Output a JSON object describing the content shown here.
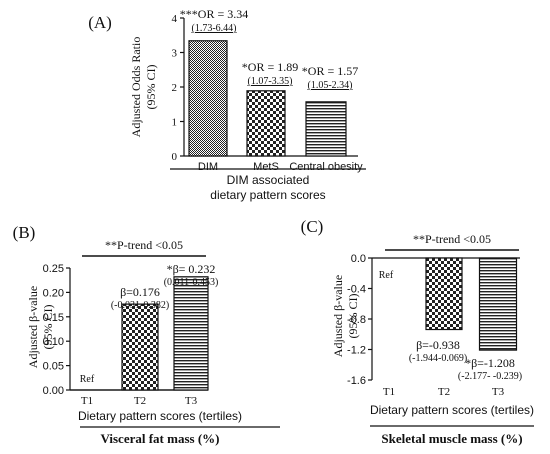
{
  "chart_data": [
    {
      "panel": "(A)",
      "type": "bar",
      "ylabel": "Adjusted Odds Ratio",
      "ylabel2": "(95% CI)",
      "xlabel": "DIM associated",
      "xlabel2": "dietary pattern scores",
      "ylim": [
        0,
        4
      ],
      "yticks": [
        "0",
        "1",
        "2",
        "3",
        "4"
      ],
      "categories": [
        "DIM",
        "MetS",
        "Central obesity"
      ],
      "category_labels": [
        "DIM",
        "MetS",
        "Central obesity"
      ],
      "values": [
        3.34,
        1.89,
        1.57
      ],
      "patterns": [
        "dots",
        "checker",
        "hlines"
      ],
      "annotations": [
        {
          "line1": "***OR = 3.34",
          "line2": "(1.73-6.44)"
        },
        {
          "line1": "*OR = 1.89",
          "line2": "(1.07-3.35)"
        },
        {
          "line1": "*OR = 1.57",
          "line2": "(1.05-2.34)"
        }
      ]
    },
    {
      "panel": "(B)",
      "type": "bar",
      "ylabel": "Adjusted β-value",
      "ylabel2": "(95% CI)",
      "xlabel": "Dietary pattern scores (tertiles)",
      "footer": "Visceral fat mass (%)",
      "trend": "**P-trend <0.05",
      "ylim": [
        0,
        0.25
      ],
      "yticks": [
        "0.00",
        "0.05",
        "0.10",
        "0.15",
        "0.20",
        "0.25"
      ],
      "categories": [
        "T1",
        "T2",
        "T3"
      ],
      "values": [
        0,
        0.176,
        0.232
      ],
      "patterns": [
        "none",
        "checker",
        "hlines"
      ],
      "annotations": [
        {
          "line1": "Ref",
          "line2": ""
        },
        {
          "line1": "β=0.176",
          "line2": "(-0.031-0.382)"
        },
        {
          "line1": "*β= 0.232",
          "line2": "(0.011-0.453)"
        }
      ]
    },
    {
      "panel": "(C)",
      "type": "bar",
      "ylabel": "Adjusted β-value",
      "ylabel2": "(95% CI)",
      "xlabel": "Dietary pattern scores (tertiles)",
      "footer": "Skeletal muscle mass (%)",
      "trend": "**P-trend <0.05",
      "ylim": [
        -1.6,
        0
      ],
      "yticks": [
        "-1.6",
        "-1.2",
        "-0.8",
        "-0.4",
        "0.0"
      ],
      "categories": [
        "T1",
        "T2",
        "T3"
      ],
      "values": [
        0,
        -0.938,
        -1.208
      ],
      "patterns": [
        "none",
        "checker",
        "hlines"
      ],
      "annotations": [
        {
          "line1": "Ref",
          "line2": ""
        },
        {
          "line1": "β=-0.938",
          "line2": "(-1.944-0.069)"
        },
        {
          "line1": "*β=-1.208",
          "line2": "(-2.177- -0.239)"
        }
      ]
    }
  ]
}
